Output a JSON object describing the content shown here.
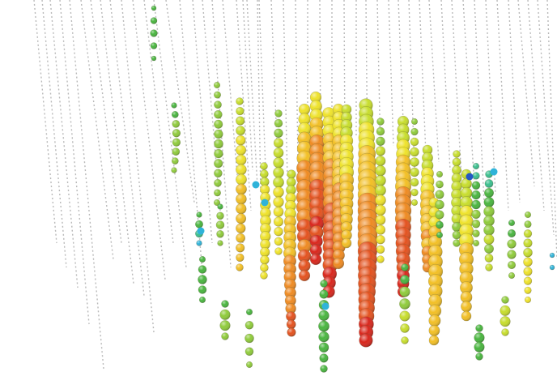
{
  "image": {
    "subject": "neutrino-event-display",
    "background": "#ffffff",
    "string_color": "#b9b9b9",
    "hit_palette": [
      "#d8261c",
      "#e3521f",
      "#ee8a22",
      "#f2bf25",
      "#eee22a",
      "#c7dd2c",
      "#8fcb3b",
      "#49b53f",
      "#3bbf8e",
      "#2fb3d9",
      "#2458c4"
    ]
  }
}
